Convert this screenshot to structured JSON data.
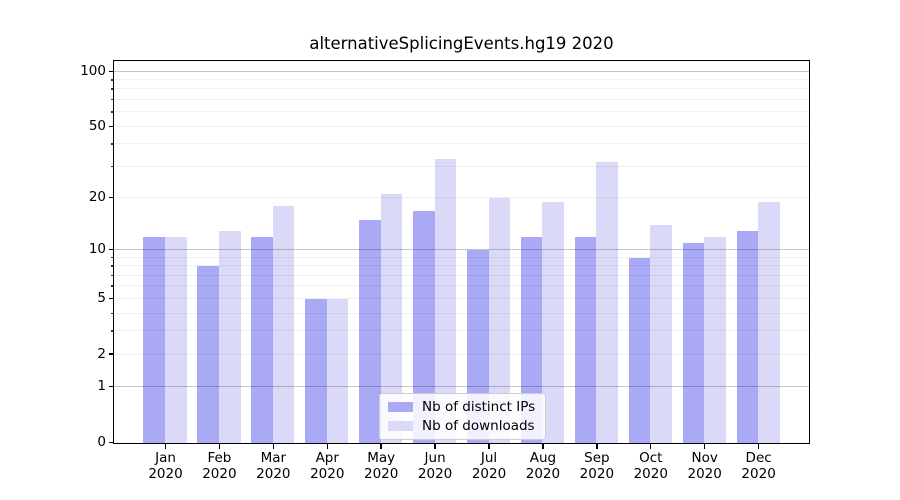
{
  "chart_data": {
    "type": "bar",
    "title": "alternativeSplicingEvents.hg19 2020",
    "year": "2020",
    "categories": [
      "Jan",
      "Feb",
      "Mar",
      "Apr",
      "May",
      "Jun",
      "Jul",
      "Aug",
      "Sep",
      "Oct",
      "Nov",
      "Dec"
    ],
    "series": [
      {
        "name": "Nb of distinct IPs",
        "color": "#a9a9f5",
        "values": [
          12,
          8,
          12,
          5,
          15,
          17,
          10,
          12,
          12,
          9,
          11,
          13
        ]
      },
      {
        "name": "Nb of downloads",
        "color": "#dadaf8",
        "values": [
          12,
          13,
          18,
          5,
          21,
          33,
          20,
          19,
          32,
          14,
          12,
          19
        ]
      }
    ],
    "xlabel": "",
    "ylabel": "",
    "yscale": "log1p",
    "ylim": [
      0,
      113
    ],
    "ytick_labels": [
      0,
      1,
      2,
      5,
      10,
      20,
      50,
      100
    ],
    "ytick_major": [
      1,
      10,
      100
    ],
    "ytick_minor": [
      2,
      3,
      4,
      5,
      6,
      7,
      8,
      9,
      20,
      30,
      40,
      50,
      60,
      70,
      80,
      90
    ],
    "grid": true,
    "legend_position": "lower center"
  },
  "colors": {
    "bar_distinct_ips": "#a9a9f5",
    "bar_downloads": "#dadaf8",
    "spine": "#000000",
    "grid_major": "rgba(0,0,0,0.22)",
    "grid_minor": "rgba(0,0,0,0.06)",
    "legend_bg": "rgba(255,255,255,0.85)",
    "legend_border": "#cccccc"
  }
}
